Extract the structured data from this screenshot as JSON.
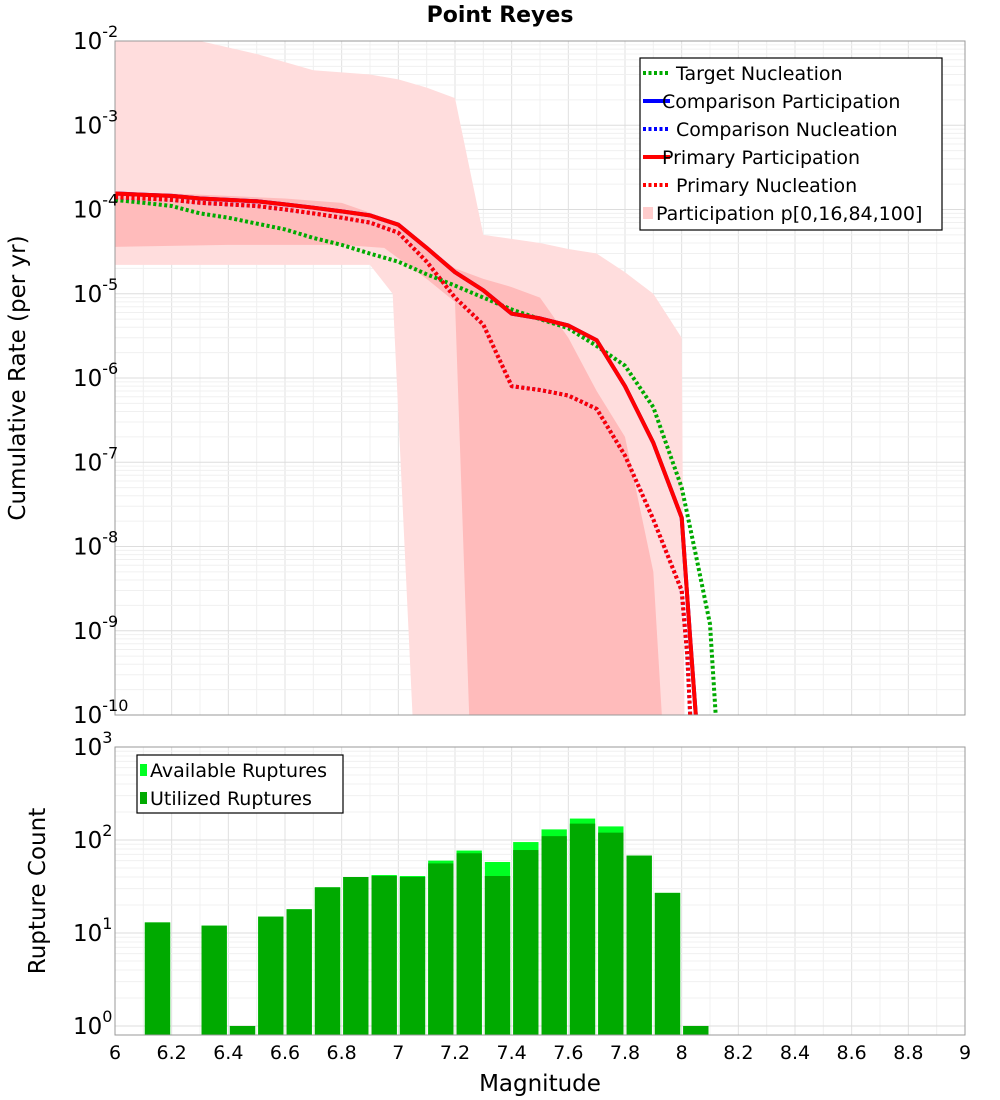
{
  "chart_data": [
    {
      "type": "line",
      "title": "Point Reyes",
      "xlabel": "Magnitude",
      "ylabel": "Cumulative Rate (per yr)",
      "xlim": [
        6,
        9
      ],
      "ylim": [
        1e-10,
        0.01
      ],
      "yscale": "log",
      "y_ticks": [
        {
          "base": "10",
          "exp": "-10",
          "value": 1e-10
        },
        {
          "base": "10",
          "exp": "-9",
          "value": 1e-09
        },
        {
          "base": "10",
          "exp": "-8",
          "value": 1e-08
        },
        {
          "base": "10",
          "exp": "-7",
          "value": 1e-07
        },
        {
          "base": "10",
          "exp": "-6",
          "value": 1e-06
        },
        {
          "base": "10",
          "exp": "-5",
          "value": 1e-05
        },
        {
          "base": "10",
          "exp": "-4",
          "value": 0.0001
        },
        {
          "base": "10",
          "exp": "-3",
          "value": 0.001
        },
        {
          "base": "10",
          "exp": "-2",
          "value": 0.01
        }
      ],
      "legend_position": "top-right",
      "legend": [
        {
          "label": "Target Nucleation",
          "color": "#00aa00",
          "style": "dotted"
        },
        {
          "label": "Comparison Participation",
          "color": "#0000ff",
          "style": "solid"
        },
        {
          "label": "Comparison Nucleation",
          "color": "#0000ff",
          "style": "dotted"
        },
        {
          "label": "Primary Participation",
          "color": "#ff0000",
          "style": "solid"
        },
        {
          "label": "Primary Nucleation",
          "color": "#ff0000",
          "style": "dotted"
        },
        {
          "label": "Participation p[0,16,84,100]",
          "color": "#ffcccc",
          "style": "fill"
        }
      ],
      "series": [
        {
          "name": "Target Nucleation",
          "color": "#00aa00",
          "style": "dotted",
          "x": [
            6.0,
            6.1,
            6.2,
            6.3,
            6.4,
            6.5,
            6.6,
            6.7,
            6.8,
            6.9,
            7.0,
            7.1,
            7.2,
            7.3,
            7.4,
            7.5,
            7.6,
            7.7,
            7.8,
            7.9,
            8.0,
            8.05,
            8.1,
            8.12
          ],
          "y": [
            0.00013,
            0.00012,
            0.00011,
            9e-05,
            8e-05,
            6.8e-05,
            5.8e-05,
            4.6e-05,
            3.8e-05,
            3e-05,
            2.4e-05,
            1.7e-05,
            1.25e-05,
            9e-06,
            6.5e-06,
            5e-06,
            3.9e-06,
            2.4e-06,
            1.4e-06,
            4.5e-07,
            5e-08,
            8e-09,
            1.2e-09,
            1e-10
          ]
        },
        {
          "name": "Comparison Participation",
          "color": "#0000ff",
          "style": "solid",
          "x": [
            6.0,
            6.1,
            6.2,
            6.3,
            6.4,
            6.5,
            6.6,
            6.7,
            6.8,
            6.9,
            7.0,
            7.1,
            7.2,
            7.3,
            7.4,
            7.5,
            7.6,
            7.7,
            7.8,
            7.9,
            8.0,
            8.03,
            8.05
          ],
          "y": [
            0.000155,
            0.00015,
            0.000145,
            0.000135,
            0.00013,
            0.000125,
            0.000115,
            0.000105,
            9.5e-05,
            8.5e-05,
            6.6e-05,
            3.5e-05,
            1.8e-05,
            1.1e-05,
            5.8e-06,
            5.1e-06,
            4.2e-06,
            2.8e-06,
            8e-07,
            1.7e-07,
            2.2e-08,
            8e-10,
            1e-10
          ]
        },
        {
          "name": "Comparison Nucleation",
          "color": "#0000ff",
          "style": "dotted",
          "x": [
            6.0,
            6.1,
            6.2,
            6.3,
            6.4,
            6.5,
            6.6,
            6.7,
            6.8,
            6.9,
            7.0,
            7.1,
            7.2,
            7.3,
            7.4,
            7.5,
            7.6,
            7.7,
            7.8,
            7.9,
            8.0,
            8.02,
            8.03
          ],
          "y": [
            0.00014,
            0.000135,
            0.00013,
            0.00012,
            0.000115,
            0.00011,
            0.0001,
            9e-05,
            8e-05,
            7e-05,
            5.3e-05,
            2.4e-05,
            9e-06,
            4.3e-06,
            8e-07,
            7.2e-07,
            6.2e-07,
            4.3e-07,
            1.2e-07,
            2.1e-08,
            3e-09,
            5e-10,
            1e-10
          ]
        },
        {
          "name": "Primary Participation",
          "color": "#ff0000",
          "style": "solid",
          "x": [
            6.0,
            6.1,
            6.2,
            6.3,
            6.4,
            6.5,
            6.6,
            6.7,
            6.8,
            6.9,
            7.0,
            7.1,
            7.2,
            7.3,
            7.4,
            7.5,
            7.6,
            7.7,
            7.8,
            7.9,
            8.0,
            8.03,
            8.05
          ],
          "y": [
            0.000155,
            0.00015,
            0.000145,
            0.000135,
            0.00013,
            0.000125,
            0.000115,
            0.000105,
            9.5e-05,
            8.5e-05,
            6.6e-05,
            3.5e-05,
            1.8e-05,
            1.1e-05,
            5.8e-06,
            5.1e-06,
            4.2e-06,
            2.8e-06,
            8e-07,
            1.7e-07,
            2.2e-08,
            8e-10,
            1e-10
          ]
        },
        {
          "name": "Primary Nucleation",
          "color": "#ff0000",
          "style": "dotted",
          "x": [
            6.0,
            6.1,
            6.2,
            6.3,
            6.4,
            6.5,
            6.6,
            6.7,
            6.8,
            6.9,
            7.0,
            7.1,
            7.2,
            7.3,
            7.4,
            7.5,
            7.6,
            7.7,
            7.8,
            7.9,
            8.0,
            8.02,
            8.03
          ],
          "y": [
            0.00014,
            0.000135,
            0.00013,
            0.00012,
            0.000115,
            0.00011,
            0.0001,
            9e-05,
            8e-05,
            7e-05,
            5.3e-05,
            2.4e-05,
            9e-06,
            4.3e-06,
            8e-07,
            7.2e-07,
            6.2e-07,
            4.3e-07,
            1.2e-07,
            2.1e-08,
            3e-09,
            5e-10,
            1e-10
          ]
        }
      ],
      "bands": [
        {
          "name": "p0-p100",
          "color": "#ffdddd",
          "upper": {
            "x": [
              6.0,
              6.3,
              6.5,
              6.7,
              6.9,
              7.0,
              7.1,
              7.2,
              7.3,
              7.5,
              7.6,
              7.7,
              7.8,
              7.9,
              8.0,
              8.01
            ],
            "y": [
              0.01,
              0.01,
              0.007,
              0.0045,
              0.004,
              0.0035,
              0.0028,
              0.0021,
              5e-05,
              4e-05,
              3.4e-05,
              3e-05,
              1.8e-05,
              1e-05,
              3e-06,
              1e-10
            ]
          },
          "lower": {
            "x": [
              6.0,
              6.9,
              6.98,
              7.05
            ],
            "y": [
              2.2e-05,
              2.2e-05,
              1e-05,
              1e-10
            ]
          }
        },
        {
          "name": "p16-p84",
          "color": "#ffbbbb",
          "upper": {
            "x": [
              6.0,
              6.2,
              6.4,
              6.6,
              6.8,
              7.0,
              7.1,
              7.2,
              7.3,
              7.4,
              7.5,
              7.6,
              7.7,
              7.8,
              7.9,
              7.93
            ],
            "y": [
              0.00016,
              0.000155,
              0.000145,
              0.000135,
              0.00012,
              7e-05,
              3.5e-05,
              2e-05,
              1.5e-05,
              1.2e-05,
              9e-06,
              3e-06,
              7e-07,
              2e-07,
              5e-09,
              1e-10
            ]
          },
          "lower": {
            "x": [
              6.0,
              6.4,
              6.8,
              6.95,
              7.1,
              7.2,
              7.25
            ],
            "y": [
              3.6e-05,
              3.8e-05,
              3.8e-05,
              3.5e-05,
              1.5e-05,
              8e-06,
              1e-10
            ]
          }
        }
      ]
    },
    {
      "type": "bar",
      "xlabel": "Magnitude",
      "ylabel": "Rupture Count",
      "xlim": [
        6,
        9
      ],
      "ylim": [
        0.8,
        1000
      ],
      "yscale": "log",
      "x_ticks": [
        "6",
        "6.2",
        "6.4",
        "6.6",
        "6.8",
        "7",
        "7.2",
        "7.4",
        "7.6",
        "7.8",
        "8",
        "8.2",
        "8.4",
        "8.6",
        "8.8",
        "9"
      ],
      "y_ticks": [
        {
          "base": "10",
          "exp": "0",
          "value": 1
        },
        {
          "base": "10",
          "exp": "1",
          "value": 10
        },
        {
          "base": "10",
          "exp": "2",
          "value": 100
        },
        {
          "base": "10",
          "exp": "3",
          "value": 1000
        }
      ],
      "legend_position": "top-left",
      "legend": [
        {
          "label": "Available Ruptures",
          "color": "#00ff22"
        },
        {
          "label": "Utilized Ruptures",
          "color": "#00aa00"
        }
      ],
      "bin_width": 0.1,
      "categories": [
        6.15,
        6.25,
        6.35,
        6.45,
        6.55,
        6.65,
        6.75,
        6.85,
        6.95,
        7.05,
        7.15,
        7.25,
        7.35,
        7.45,
        7.55,
        7.65,
        7.75,
        7.85,
        7.95,
        8.05
      ],
      "series": [
        {
          "name": "Available Ruptures",
          "color": "#00ff22",
          "values": [
            13,
            0,
            12,
            1,
            15,
            18,
            31,
            40,
            42,
            41,
            60,
            77,
            58,
            95,
            130,
            170,
            140,
            68,
            27,
            1
          ]
        },
        {
          "name": "Utilized Ruptures",
          "color": "#00aa00",
          "values": [
            13,
            0,
            12,
            1,
            15,
            18,
            31,
            40,
            41,
            40,
            56,
            72,
            41,
            78,
            110,
            150,
            120,
            68,
            27,
            1
          ]
        }
      ]
    }
  ]
}
